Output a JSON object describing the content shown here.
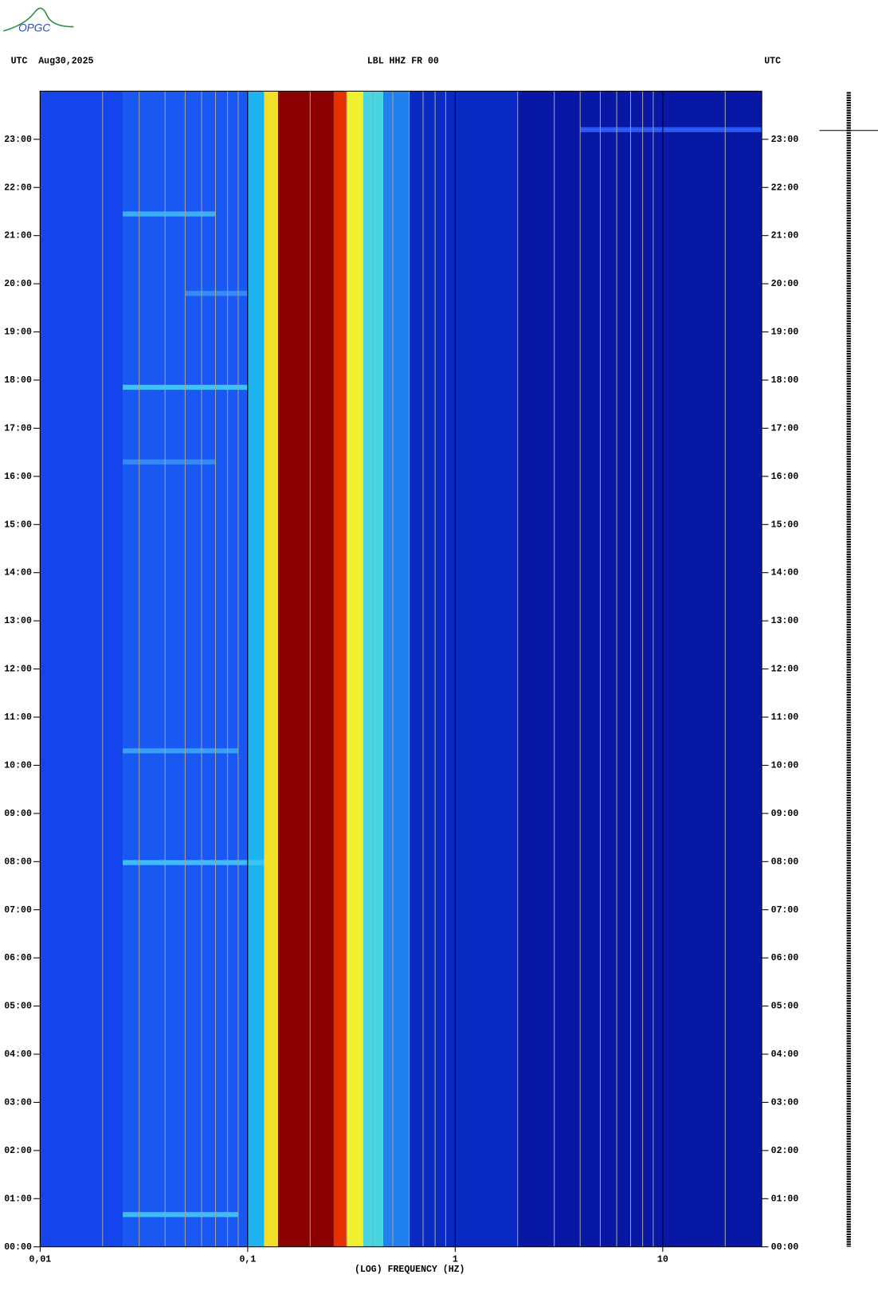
{
  "logo": "OPGC",
  "chart_data": {
    "type": "spectrogram",
    "title": "LBL HHZ FR 00",
    "left_header": "UTC  Aug30,2025",
    "right_header": "UTC",
    "x_label": "(LOG) FREQUENCY (HZ)",
    "x_log": true,
    "xlim": [
      0.01,
      30
    ],
    "xticks": [
      {
        "value": 0.01,
        "label": "0,01"
      },
      {
        "value": 0.1,
        "label": "0,1"
      },
      1,
      10
    ],
    "xgrid": [
      0.02,
      0.03,
      0.04,
      0.05,
      0.06,
      0.07,
      0.08,
      0.09,
      0.2,
      0.3,
      0.4,
      0.5,
      0.6,
      0.7,
      0.8,
      0.9,
      2,
      3,
      4,
      5,
      6,
      7,
      8,
      9,
      20
    ],
    "ylim": [
      0,
      24
    ],
    "yticks": [
      {
        "value": 0,
        "label": "00:00"
      },
      {
        "value": 1,
        "label": "01:00"
      },
      {
        "value": 2,
        "label": "02:00"
      },
      {
        "value": 3,
        "label": "03:00"
      },
      {
        "value": 4,
        "label": "04:00"
      },
      {
        "value": 5,
        "label": "05:00"
      },
      {
        "value": 6,
        "label": "06:00"
      },
      {
        "value": 7,
        "label": "07:00"
      },
      {
        "value": 8,
        "label": "08:00"
      },
      {
        "value": 9,
        "label": "09:00"
      },
      {
        "value": 10,
        "label": "10:00"
      },
      {
        "value": 11,
        "label": "11:00"
      },
      {
        "value": 12,
        "label": "12:00"
      },
      {
        "value": 13,
        "label": "13:00"
      },
      {
        "value": 14,
        "label": "14:00"
      },
      {
        "value": 15,
        "label": "15:00"
      },
      {
        "value": 16,
        "label": "16:00"
      },
      {
        "value": 17,
        "label": "17:00"
      },
      {
        "value": 18,
        "label": "18:00"
      },
      {
        "value": 19,
        "label": "19:00"
      },
      {
        "value": 20,
        "label": "20:00"
      },
      {
        "value": 21,
        "label": "21:00"
      },
      {
        "value": 22,
        "label": "22:00"
      },
      {
        "value": 23,
        "label": "23:00"
      }
    ],
    "bands": [
      {
        "from": 0.01,
        "to": 0.025,
        "color": "#1444ec"
      },
      {
        "from": 0.025,
        "to": 0.1,
        "color": "#1a58f4"
      },
      {
        "from": 0.1,
        "to": 0.12,
        "color": "#1cb4f0"
      },
      {
        "from": 0.12,
        "to": 0.14,
        "color": "#f4e028"
      },
      {
        "from": 0.14,
        "to": 0.26,
        "color": "#8c0000"
      },
      {
        "from": 0.26,
        "to": 0.3,
        "color": "#e63200"
      },
      {
        "from": 0.3,
        "to": 0.36,
        "color": "#eef030"
      },
      {
        "from": 0.36,
        "to": 0.45,
        "color": "#48d4e0"
      },
      {
        "from": 0.45,
        "to": 0.6,
        "color": "#2080f0"
      },
      {
        "from": 0.6,
        "to": 2,
        "color": "#0a2ac4"
      },
      {
        "from": 2,
        "to": 30,
        "color": "#0818a4"
      }
    ],
    "events": [
      {
        "time": 0.67,
        "from": 0.025,
        "to": 0.09,
        "color": "#40c8f8"
      },
      {
        "time": 7.98,
        "from": 0.025,
        "to": 0.12,
        "color": "#40c8f8"
      },
      {
        "time": 10.3,
        "from": 0.025,
        "to": 0.09,
        "color": "#3aa8f8"
      },
      {
        "time": 16.3,
        "from": 0.025,
        "to": 0.07,
        "color": "#3a90f8"
      },
      {
        "time": 17.85,
        "from": 0.025,
        "to": 0.1,
        "color": "#40d0f8"
      },
      {
        "time": 19.8,
        "from": 0.05,
        "to": 0.1,
        "color": "#3a90f8"
      },
      {
        "time": 21.45,
        "from": 0.025,
        "to": 0.07,
        "color": "#40b8f8"
      },
      {
        "time": 23.2,
        "from": 4,
        "to": 30,
        "color": "#3060ff"
      }
    ]
  }
}
